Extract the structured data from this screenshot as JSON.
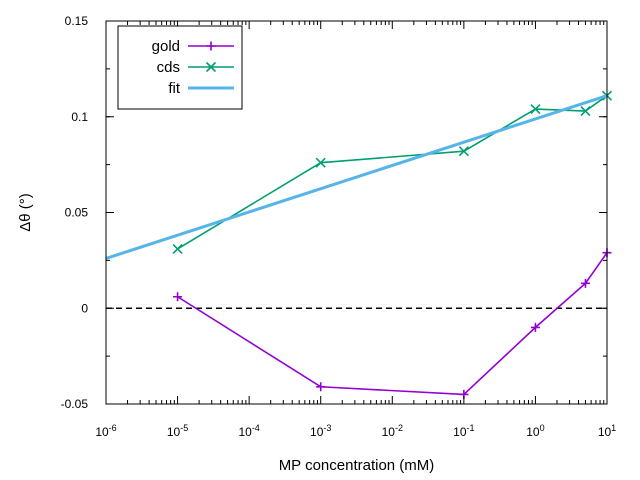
{
  "chart_data": {
    "type": "line",
    "title": "",
    "xlabel": "MP concentration (mM)",
    "ylabel": "Δθ (°)",
    "x_scale": "log",
    "xlim": [
      1e-06,
      10
    ],
    "ylim": [
      -0.05,
      0.15
    ],
    "x_ticks": [
      {
        "value": 1e-06,
        "base": "10",
        "exp": "-6"
      },
      {
        "value": 1e-05,
        "base": "10",
        "exp": "-5"
      },
      {
        "value": 0.0001,
        "base": "10",
        "exp": "-4"
      },
      {
        "value": 0.001,
        "base": "10",
        "exp": "-3"
      },
      {
        "value": 0.01,
        "base": "10",
        "exp": "-2"
      },
      {
        "value": 0.1,
        "base": "10",
        "exp": "-1"
      },
      {
        "value": 1,
        "base": "10",
        "exp": "0"
      },
      {
        "value": 10,
        "base": "10",
        "exp": "1"
      }
    ],
    "y_ticks": [
      {
        "value": -0.05,
        "label": "-0.05"
      },
      {
        "value": 0,
        "label": "0"
      },
      {
        "value": 0.05,
        "label": "0.05"
      },
      {
        "value": 0.1,
        "label": "0.1"
      },
      {
        "value": 0.15,
        "label": "0.15"
      }
    ],
    "grid": false,
    "legend_position": "top-left",
    "reference_line": {
      "y": 0,
      "style": "dashed",
      "color": "#000000"
    },
    "series": [
      {
        "name": "gold",
        "color": "#9400d3",
        "marker": "plus",
        "x": [
          1e-05,
          0.001,
          0.1,
          1,
          5,
          10
        ],
        "y": [
          0.006,
          -0.041,
          -0.045,
          -0.01,
          0.013,
          0.029
        ]
      },
      {
        "name": "cds",
        "color": "#009e73",
        "marker": "cross",
        "x": [
          1e-05,
          0.001,
          0.1,
          1,
          5,
          10
        ],
        "y": [
          0.031,
          0.076,
          0.082,
          0.104,
          0.103,
          0.111
        ]
      },
      {
        "name": "fit",
        "color": "#56b4e9",
        "marker": "none",
        "x": [
          1e-06,
          10
        ],
        "y": [
          0.026,
          0.111
        ]
      }
    ]
  }
}
